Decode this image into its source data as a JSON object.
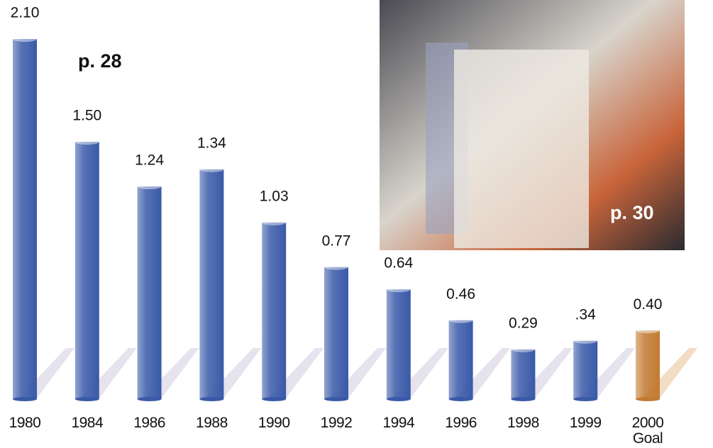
{
  "chart_data": {
    "type": "bar",
    "categories": [
      "1980",
      "1984",
      "1986",
      "1988",
      "1990",
      "1992",
      "1994",
      "1996",
      "1998",
      "1999",
      "2000 Goal"
    ],
    "values": [
      2.1,
      1.5,
      1.24,
      1.34,
      1.03,
      0.77,
      0.64,
      0.46,
      0.29,
      0.34,
      0.4
    ],
    "value_labels": [
      "2.10",
      "1.50",
      "1.24",
      "1.34",
      "1.03",
      "0.77",
      "0.64",
      "0.46",
      "0.29",
      ".34",
      "0.40"
    ],
    "colors": [
      "#3a5aa8",
      "#3a5aa8",
      "#3a5aa8",
      "#3a5aa8",
      "#3a5aa8",
      "#3a5aa8",
      "#3a5aa8",
      "#3a5aa8",
      "#3a5aa8",
      "#3a5aa8",
      "#c27a32"
    ],
    "annotations": [
      "p. 28",
      "p. 30"
    ]
  }
}
